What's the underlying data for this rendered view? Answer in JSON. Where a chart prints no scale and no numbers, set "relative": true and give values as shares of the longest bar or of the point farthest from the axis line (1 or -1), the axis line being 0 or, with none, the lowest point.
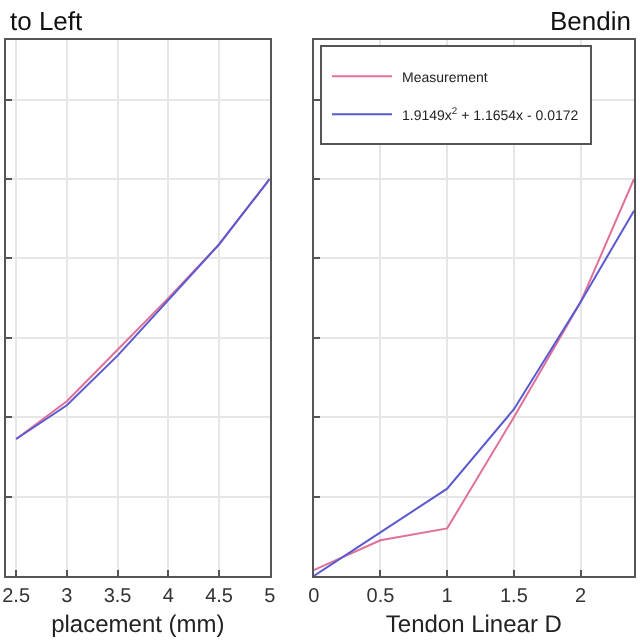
{
  "chart_data": [
    {
      "type": "line",
      "title": "to Left",
      "xlabel": "placement (mm)",
      "relative": true,
      "x": [
        2.5,
        3,
        3.5,
        4,
        4.5,
        5
      ],
      "xlim": [
        2.4,
        5
      ],
      "xticks": [
        2.5,
        3,
        3.5,
        4,
        4.5,
        5
      ],
      "grid": true,
      "legend": false,
      "series": [
        {
          "color": "#e0709a",
          "values": [
            0.345,
            0.44,
            0.57,
            0.7,
            0.835,
            1.0
          ]
        },
        {
          "color": "#5a5ad0",
          "values": [
            0.345,
            0.43,
            0.555,
            0.695,
            0.835,
            1.0
          ]
        }
      ]
    },
    {
      "type": "line",
      "title": "Bendin",
      "xlabel": "Tendon Linear D",
      "relative": true,
      "x": [
        0,
        0.5,
        1,
        1.5,
        2,
        2.4
      ],
      "xlim": [
        0,
        2.4
      ],
      "xticks": [
        0,
        0.5,
        1,
        1.5,
        2
      ],
      "grid": true,
      "legend": "top left",
      "series": [
        {
          "name": "Measurement",
          "color": "#e0709a",
          "values": [
            0.015,
            0.09,
            0.12,
            0.4,
            0.69,
            1.0
          ]
        },
        {
          "name": "1.9149x$^{2}$ + 1.1654x - 0.0172",
          "color": "#5a5ad0",
          "values": [
            0.0,
            0.11,
            0.22,
            0.42,
            0.69,
            0.92
          ]
        }
      ]
    }
  ]
}
